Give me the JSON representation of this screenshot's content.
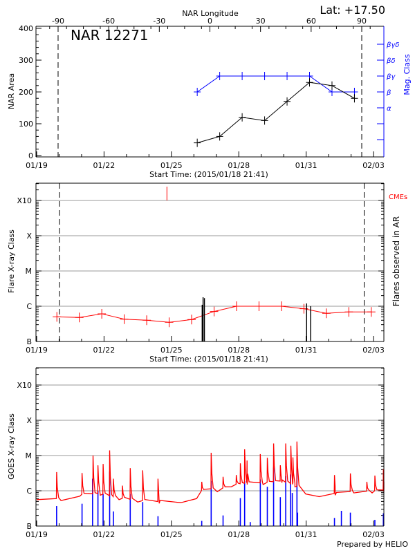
{
  "chart_data": [
    {
      "type": "line",
      "title": "NAR 12271",
      "header_right": "Lat: +17.50",
      "top_axis_label": "NAR Longitude",
      "top_ticks": [
        -90,
        -60,
        -30,
        0,
        30,
        60,
        90
      ],
      "top_range": [
        -103,
        103
      ],
      "xlabel": "Start Time: (2015/01/18 21:41)",
      "x_ticks": [
        "01/19",
        "01/22",
        "01/25",
        "01/28",
        "01/31",
        "02/03"
      ],
      "ylabel": "NAR Area",
      "ylim": [
        0,
        400
      ],
      "y_ticks": [
        0,
        100,
        200,
        300,
        400
      ],
      "y2label": "Mag. Class",
      "y2_ticks": [
        "α",
        "β",
        "βγ",
        "βδ",
        "βγδ"
      ],
      "limb_longitudes": [
        -90,
        90
      ],
      "series": [
        {
          "name": "NAR Area",
          "color": "#000000",
          "x": [
            "01/26 03:36",
            "01/27 03:36",
            "01/28 03:36",
            "01/29 03:36",
            "01/30 03:36",
            "01/31 03:36",
            "02/01 03:36",
            "02/02 03:36"
          ],
          "y": [
            40,
            60,
            120,
            110,
            170,
            230,
            220,
            180
          ]
        },
        {
          "name": "Mag. Class",
          "color": "#0000ff",
          "x": [
            "01/26 03:36",
            "01/27 03:36",
            "01/28 03:36",
            "01/29 03:36",
            "01/30 03:36",
            "01/31 03:36",
            "02/01 03:36",
            "02/02 03:36"
          ],
          "y": [
            "β",
            "βγ",
            "βγ",
            "βγ",
            "βγ",
            "βγ",
            "β",
            "β"
          ]
        }
      ]
    },
    {
      "type": "line",
      "xlabel": "Start Time: (2015/01/18 21:41)",
      "x_ticks": [
        "01/19",
        "01/22",
        "01/25",
        "01/28",
        "01/31",
        "02/03"
      ],
      "ylabel": "Flare X-ray Class",
      "y_ticks": [
        "B",
        "C",
        "M",
        "X",
        "X10"
      ],
      "y2label": "Flares observed in AR",
      "cme_label": "CMEs",
      "grid": true,
      "limb_dates": [
        "01/20 00:30",
        "02/02 14:00"
      ],
      "background_series": {
        "color": "#ff0000",
        "x": [
          "01/19 21:36",
          "01/20 21:36",
          "01/21 21:36",
          "01/22 21:36",
          "01/23 21:36",
          "01/24 21:36",
          "01/25 21:36",
          "01/26 21:36",
          "01/27 21:36",
          "01/28 21:36",
          "01/29 21:36",
          "01/30 21:36",
          "01/31 21:36",
          "02/01 21:36",
          "02/02 21:36"
        ],
        "y": [
          "B5.0",
          "B4.8",
          "B6.1",
          "B4.3",
          "B4.0",
          "B3.5",
          "B4.2",
          "B7.1",
          "C1.0",
          "C1.0",
          "C1.0",
          "B8.5",
          "B6.3",
          "B6.9",
          "B6.9"
        ]
      },
      "flares": {
        "color": "#000000",
        "x": [
          "01/26 08:53",
          "01/26 09:50",
          "01/26 11:17",
          "01/31 00:29",
          "01/31 04:48"
        ],
        "y": [
          "C1.1",
          "C1.8",
          "C1.7",
          "C1.2",
          "C1.0"
        ]
      },
      "cmes": {
        "color": "#ff0000",
        "x": [
          "01/24 19:12"
        ]
      }
    },
    {
      "type": "line",
      "x_ticks": [
        "01/19",
        "01/22",
        "01/25",
        "01/28",
        "01/31",
        "02/03"
      ],
      "ylabel": "GOES X-ray Class",
      "y_ticks": [
        "B",
        "C",
        "M",
        "X",
        "X10"
      ],
      "grid": true,
      "footer": "Prepared by HELIO",
      "series": [
        {
          "color": "#ff0000",
          "baseline_x": [
            "01/19 00:00",
            "01/20 02:00",
            "01/20 22:00",
            "01/21 20:00",
            "01/22 16:00",
            "01/23 12:00",
            "01/24 11:00",
            "01/25 10:00",
            "01/26 03:00",
            "01/26 11:00",
            "01/27 01:00",
            "01/27 16:00",
            "01/28 09:00",
            "01/29 02:00",
            "01/29 22:00",
            "01/30 12:00",
            "01/30 23:30",
            "01/31 14:00",
            "02/01 07:00",
            "02/02 03:00",
            "02/02 22:30",
            "02/03 11:00"
          ],
          "baseline_y": [
            "B5.6",
            "B5.3",
            "B7.0",
            "B7.5",
            "B5.6",
            "B4.8",
            "B4.4",
            "B4.6",
            "B6.0",
            "C1.1",
            "B9.4",
            "C1.3",
            "C1.5",
            "C1.5",
            "C1.7",
            "C1.3",
            "B8.1",
            "B6.8",
            "B7.5",
            "B8.7",
            "B8.7",
            "B9.4"
          ],
          "peaks_x": [
            "01/19 21:20",
            "01/21 00:30",
            "01/21 12:15",
            "01/21 17:30",
            "01/21 23:00",
            "01/22 06:00",
            "01/22 10:00",
            "01/22 19:40",
            "01/23 04:00",
            "01/23 17:20",
            "01/24 09:40",
            "01/26 08:24",
            "01/26 18:30",
            "01/27 07:12",
            "01/27 21:20",
            "01/28 01:40",
            "01/28 06:15",
            "01/28 08:50",
            "01/28 23:00",
            "01/29 06:30",
            "01/29 13:12",
            "01/29 20:24",
            "01/30 02:10",
            "01/30 07:40",
            "01/30 09:50",
            "01/30 14:10",
            "02/01 06:15",
            "02/01 23:15",
            "02/02 16:50",
            "02/03 01:25",
            "02/03 10:30"
          ],
          "peaks_y": [
            "C3.4",
            "C3.2",
            "M1.0",
            "C5.3",
            "C5.8",
            "M1.4",
            "C2.2",
            "C1.4",
            "C4.4",
            "C3.8",
            "C2.2",
            "C1.8",
            "M1.2",
            "C2.5",
            "C2.8",
            "C6.0",
            "M1.5",
            "C7.2",
            "M1.1",
            "C8.6",
            "M2.2",
            "C5.3",
            "M2.2",
            "M1.9",
            "C8.9",
            "M2.5",
            "C2.8",
            "C3.1",
            "C1.8",
            "C2.7",
            "C4.1"
          ]
        },
        {
          "color": "#0000ff",
          "x": [
            "01/19 21:20",
            "01/21 00:30",
            "01/21 11:45",
            "01/21 17:30",
            "01/21 23:00",
            "01/22 06:00",
            "01/22 10:00",
            "01/23 04:00",
            "01/23 17:20",
            "01/24 09:40",
            "01/26 08:24",
            "01/26 18:30",
            "01/27 07:12",
            "01/28 01:40",
            "01/28 06:15",
            "01/28 12:15",
            "01/28 23:00",
            "01/29 06:30",
            "01/29 13:12",
            "01/29 20:24",
            "01/30 02:10",
            "01/30 07:10",
            "01/30 09:10",
            "01/30 14:10",
            "01/30 14:50",
            "02/01 06:15",
            "02/01 13:40",
            "02/01 23:15",
            "02/03 01:25",
            "02/03 10:30"
          ],
          "y": [
            "B3.7",
            "B4.3",
            "C2.2",
            "C1.0",
            "B8.1",
            "C3.5",
            "B2.6",
            "B8.1",
            "B4.8",
            "B1.9",
            "B1.4",
            "C1.9",
            "B2.0",
            "B6.2",
            "C1.9",
            "B1.3",
            "C2.1",
            "C1.3",
            "C4.6",
            "B6.6",
            "C2.6",
            "C2.9",
            "B8.7",
            "C5.1",
            "B2.4",
            "B1.7",
            "B2.7",
            "B2.4",
            "B1.5",
            "B2.3"
          ]
        }
      ]
    }
  ]
}
